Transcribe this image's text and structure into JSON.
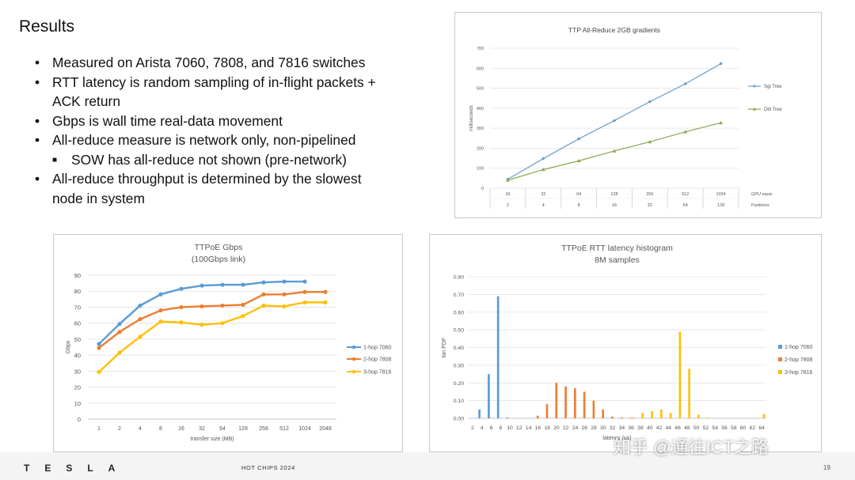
{
  "slide": {
    "title": "Results",
    "bullets": [
      {
        "text": "Measured on Arista 7060, 7808, and 7816 switches",
        "level": 1
      },
      {
        "text": "RTT latency is random sampling of in-flight packets +",
        "level": 1
      },
      {
        "text": "ACK return",
        "level": 1,
        "continuation": true
      },
      {
        "text": "Gbps is wall time real-data movement",
        "level": 1
      },
      {
        "text": "All-reduce measure is network only, non-pipelined",
        "level": 1
      },
      {
        "text": "SOW has all-reduce not shown (pre-network)",
        "level": 2
      },
      {
        "text": "All-reduce throughput is determined by the slowest",
        "level": 1
      },
      {
        "text": "node in system",
        "level": 1,
        "continuation": true
      }
    ],
    "footer": {
      "logo": "TESLA",
      "conference": "HOT CHIPS 2024",
      "page": "19"
    },
    "watermark": "知乎 @通往ICT之路"
  },
  "chart_data": [
    {
      "id": "ttp",
      "type": "line",
      "title": "TTP All-Reduce 2GB gradients",
      "ylabel": "milliseconds",
      "ylim": [
        0,
        700
      ],
      "yticks": [
        0,
        100,
        200,
        300,
        400,
        500,
        600,
        700
      ],
      "categories": [
        "16",
        "32",
        "64",
        "128",
        "256",
        "512",
        "1024"
      ],
      "categories2": [
        "2",
        "4",
        "8",
        "16",
        "32",
        "64",
        "128"
      ],
      "row_labels": [
        "GPU equiv",
        "Partitions"
      ],
      "legend": "right",
      "grid": true,
      "series": [
        {
          "name": "Sgl Tree",
          "color": "#6a9ec6",
          "marker": "diamond",
          "values": [
            45,
            148,
            247,
            338,
            433,
            522,
            623
          ]
        },
        {
          "name": "Dbl Tree",
          "color": "#8aa750",
          "marker": "triangle",
          "values": [
            40,
            93,
            137,
            186,
            232,
            282,
            327
          ]
        }
      ]
    },
    {
      "id": "gbps",
      "type": "line",
      "title": "TTPoE Gbps",
      "subtitle": "(100Gbps link)",
      "xlabel": "transfer size (MB)",
      "ylabel": "Gbps",
      "ylim": [
        0,
        90
      ],
      "yticks": [
        0,
        10,
        20,
        30,
        40,
        50,
        60,
        70,
        80,
        90
      ],
      "categories": [
        "1",
        "2",
        "4",
        "8",
        "16",
        "32",
        "64",
        "128",
        "256",
        "512",
        "1024",
        "2048"
      ],
      "legend": "right",
      "grid": true,
      "series": [
        {
          "name": "1-hop 7060",
          "color": "#5b9bd5",
          "values": [
            47,
            59.5,
            71,
            78,
            81.5,
            83.5,
            84,
            84,
            85.5,
            86,
            86,
            null
          ]
        },
        {
          "name": "2-hop 7808",
          "color": "#ed7d31",
          "values": [
            44.5,
            54.5,
            62.5,
            68,
            70,
            70.5,
            71,
            71.5,
            78,
            78,
            79.5,
            79.5
          ]
        },
        {
          "name": "3-hop 7816",
          "color": "#ffc000",
          "values": [
            29.5,
            41.5,
            51.5,
            61,
            60.5,
            59,
            60,
            64.5,
            71,
            70.5,
            73,
            73
          ]
        }
      ]
    },
    {
      "id": "rtt",
      "type": "bar",
      "title": "TTPoE RTT latency histogram",
      "subtitle": "8M samples",
      "xlabel": "latency (us)",
      "ylabel": "bin PDF",
      "ylim": [
        0,
        0.8
      ],
      "yticks": [
        "0.00",
        "0.10",
        "0.20",
        "0.30",
        "0.40",
        "0.50",
        "0.60",
        "0.70",
        "0.80"
      ],
      "categories": [
        "2",
        "4",
        "6",
        "8",
        "10",
        "12",
        "14",
        "16",
        "18",
        "20",
        "22",
        "24",
        "26",
        "28",
        "30",
        "32",
        "34",
        "36",
        "38",
        "40",
        "42",
        "44",
        "46",
        "48",
        "50",
        "52",
        "54",
        "56",
        "58",
        "60",
        "62",
        "64"
      ],
      "legend": "right",
      "grid": true,
      "series": [
        {
          "name": "1-hop 7060",
          "color": "#5b9bd5",
          "values": [
            0,
            0.05,
            0.25,
            0.69,
            0.005,
            0,
            0,
            0,
            0,
            0,
            0,
            0,
            0,
            0,
            0,
            0,
            0,
            0,
            0,
            0,
            0,
            0,
            0,
            0,
            0,
            0,
            0,
            0,
            0,
            0,
            0,
            0
          ]
        },
        {
          "name": "2-hop 7808",
          "color": "#ed7d31",
          "values": [
            0,
            0,
            0,
            0,
            0,
            0,
            0,
            0.015,
            0.08,
            0.2,
            0.18,
            0.17,
            0.15,
            0.1,
            0.05,
            0.01,
            0.005,
            0.003,
            0,
            0,
            0,
            0,
            0,
            0,
            0,
            0,
            0,
            0,
            0,
            0,
            0,
            0
          ]
        },
        {
          "name": "3-hop 7816",
          "color": "#ffc000",
          "values": [
            0,
            0,
            0,
            0,
            0,
            0,
            0,
            0,
            0,
            0,
            0,
            0,
            0,
            0,
            0,
            0,
            0,
            0.005,
            0.03,
            0.04,
            0.05,
            0.03,
            0.49,
            0.28,
            0.02,
            0.005,
            0,
            0,
            0,
            0,
            0,
            0.025
          ]
        }
      ]
    }
  ]
}
